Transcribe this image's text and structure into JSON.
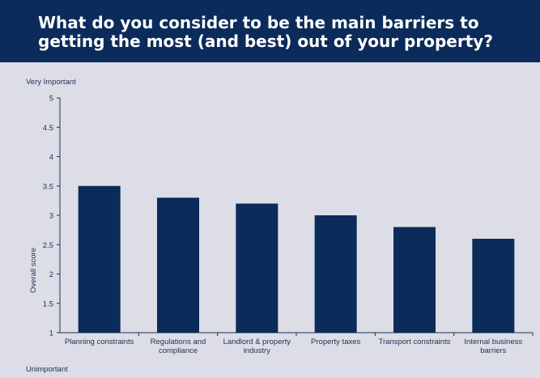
{
  "header": {
    "title": "What do you consider to be the main barriers to getting the most (and best) out of your property?"
  },
  "colors": {
    "header_bg": "#0b2b5a",
    "panel_bg": "#dcdde7",
    "bar": "#0b2b5a"
  },
  "chart_data": {
    "type": "bar",
    "categories": [
      [
        "Planning constraints"
      ],
      [
        "Regulations and",
        "compliance"
      ],
      [
        "Landlord & property",
        "industry"
      ],
      [
        "Property taxes"
      ],
      [
        "Transport constraints"
      ],
      [
        "Internal business",
        "barriers"
      ]
    ],
    "values": [
      3.5,
      3.3,
      3.2,
      3.0,
      2.8,
      2.6
    ],
    "ylabel": "Overall score",
    "ylim": [
      1,
      5
    ],
    "yticks": [
      "1",
      "1.5",
      "2",
      "2.5",
      "3",
      "3.5",
      "4",
      "4.5",
      "5"
    ],
    "top_label": "Very Important",
    "bottom_label": "Unimportant",
    "grid": false
  }
}
